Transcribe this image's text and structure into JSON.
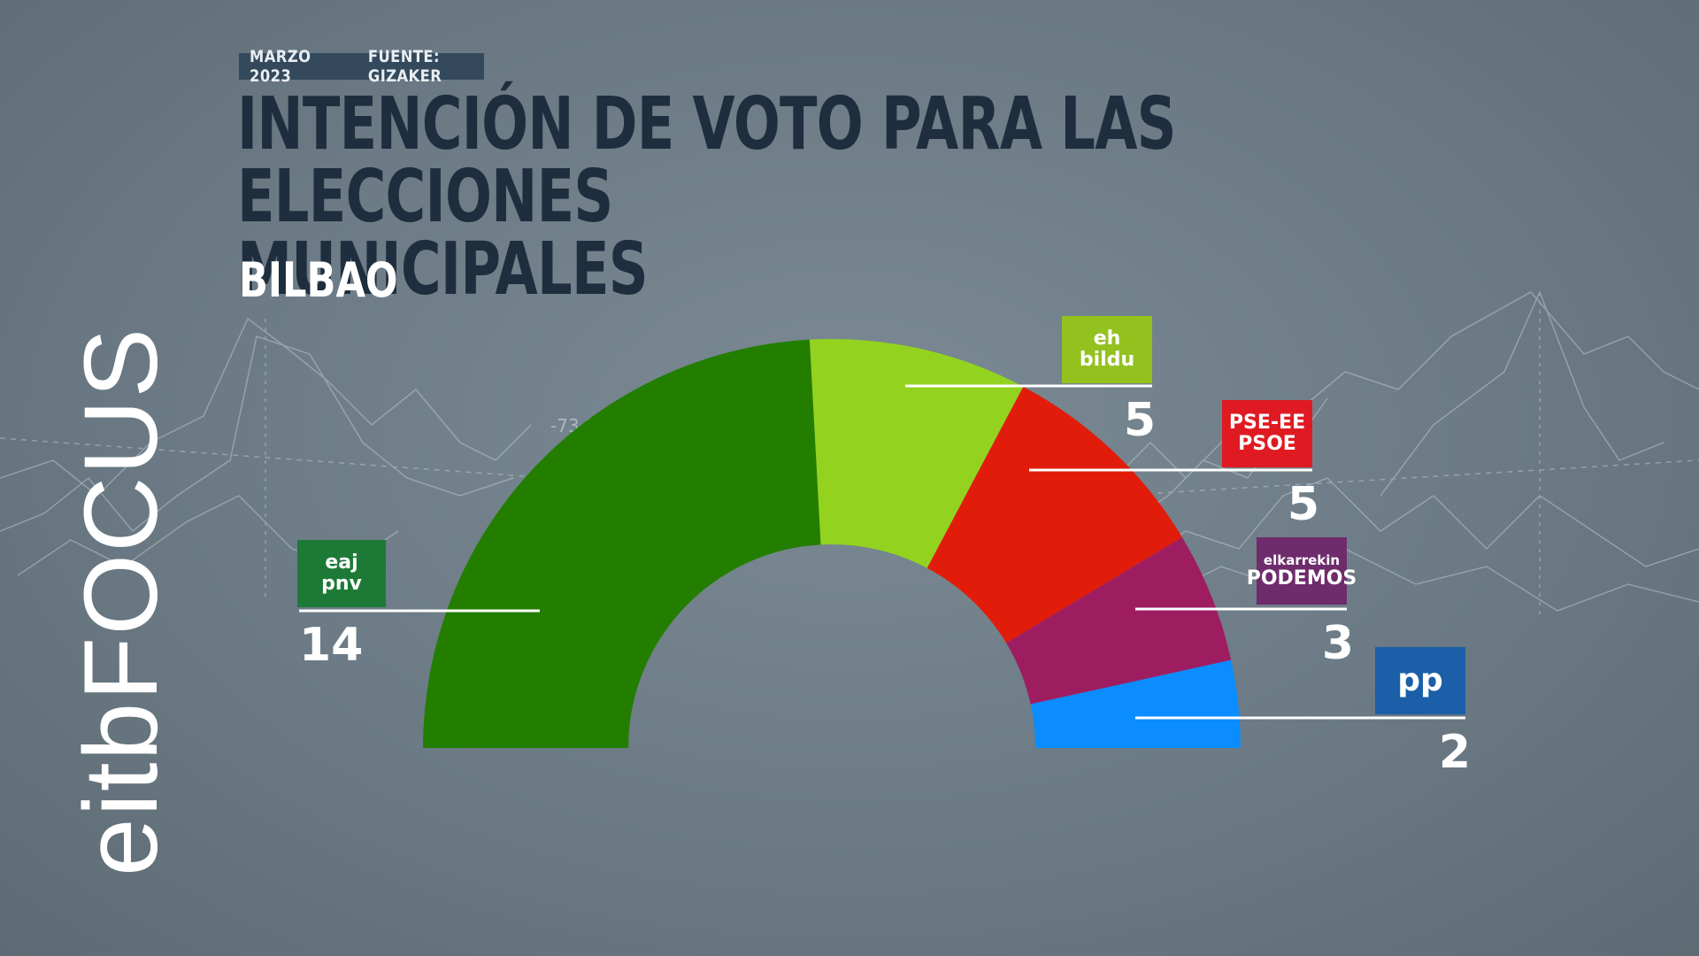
{
  "header": {
    "date": "MARZO 2023",
    "source": "FUENTE: GIZAKER",
    "title_line1": "INTENCIÓN DE VOTO PARA LAS ELECCIONES",
    "title_line2": "MUNICIPALES",
    "subtitle": "BILBAO"
  },
  "brand": "eitbFOCUS",
  "background_value": "-73.95",
  "chart_data": {
    "type": "pie",
    "variant": "half-donut",
    "title": "INTENCIÓN DE VOTO PARA LAS ELECCIONES MUNICIPALES",
    "subtitle": "BILBAO",
    "categories": [
      "EAJ-PNV",
      "EH Bildu",
      "PSE-EE PSOE",
      "Elkarrekin Podemos",
      "PP"
    ],
    "values": [
      14,
      5,
      5,
      3,
      2
    ],
    "colors": [
      "#237e00",
      "#93d31f",
      "#e21c0a",
      "#9e1d61",
      "#0b8cff"
    ],
    "parties": [
      {
        "logo_lines": [
          "eaj",
          "pnv"
        ],
        "seats": 14,
        "logo_color": "#1d7a36"
      },
      {
        "logo_lines": [
          "eh",
          "bildu"
        ],
        "seats": 5,
        "logo_color": "#93c21f"
      },
      {
        "logo_lines": [
          "PSE-EE",
          "PSOE"
        ],
        "seats": 5,
        "logo_color": "#e01a22"
      },
      {
        "logo_lines": [
          "elkarrekin",
          "PODEMOS"
        ],
        "seats": 3,
        "logo_color": "#6e2c6c"
      },
      {
        "logo_lines": [
          "pp"
        ],
        "seats": 2,
        "logo_color": "#1a5fa8"
      }
    ]
  }
}
